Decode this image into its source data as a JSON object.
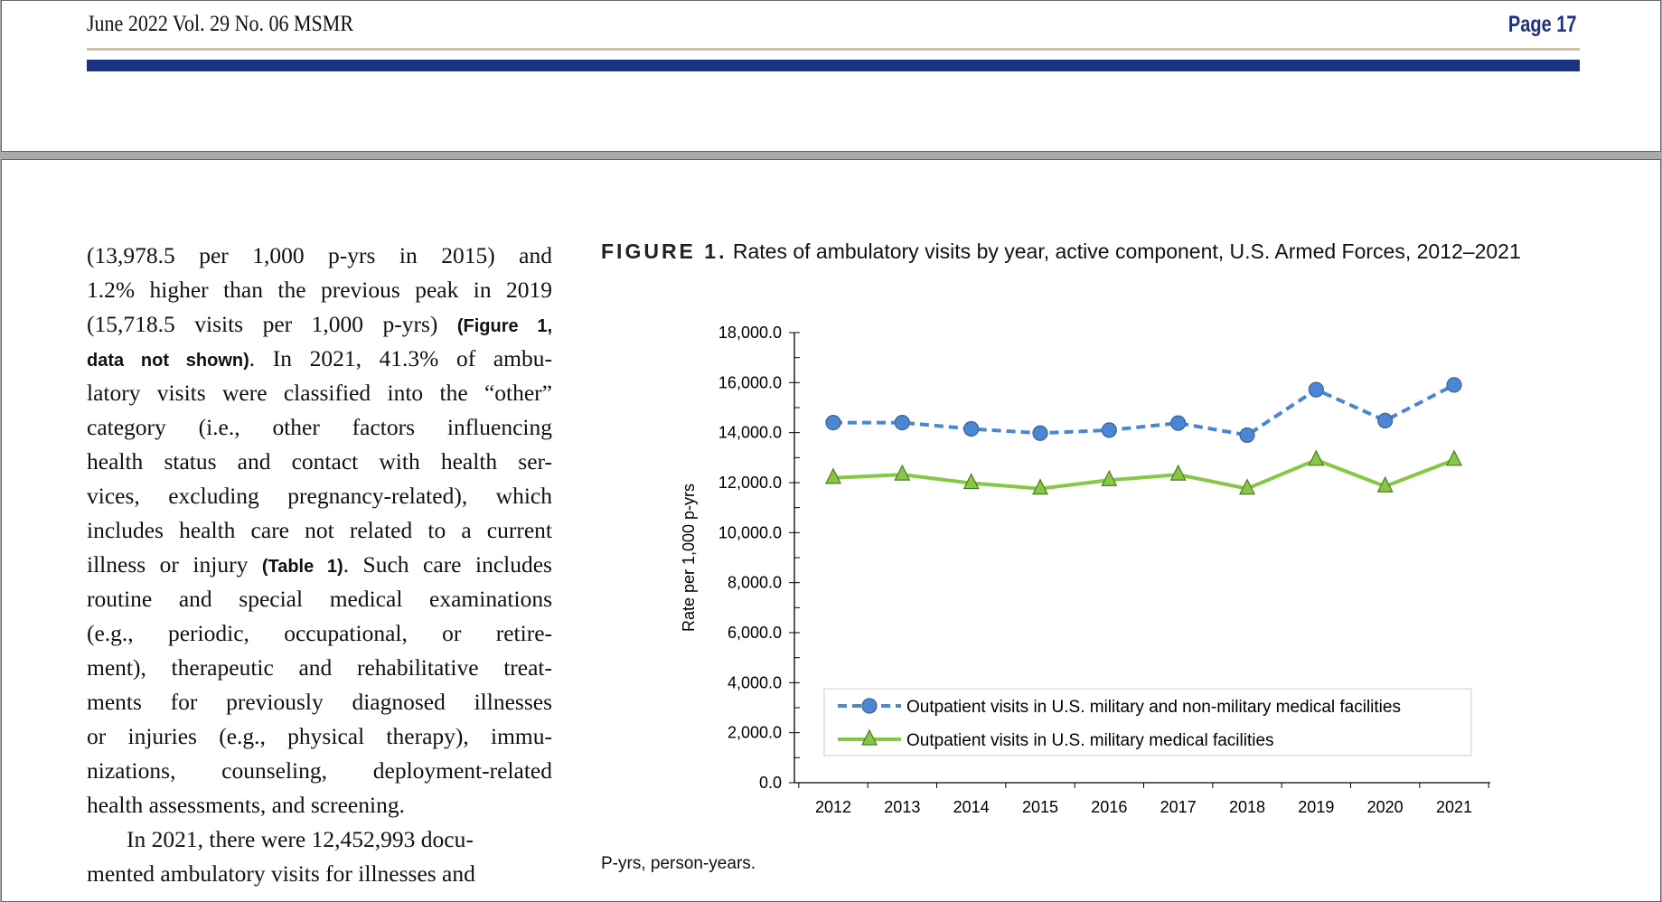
{
  "header": {
    "left": "June 2022   Vol. 29   No. 06   MSMR",
    "right": "Page 17"
  },
  "body_lines": [
    "(13,978.5 per 1,000 p-yrs in 2015) and",
    "1.2% higher than the previous peak in 2019",
    [
      "(15,718.5 visits per 1,000 p-yrs) ",
      "(Figure 1,"
    ],
    [
      "data not shown)",
      ". In 2021, 41.3% of ambu-"
    ],
    "latory visits were classified into the “other”",
    "category (i.e., other factors influencing",
    "health status and contact with health ser-",
    "vices, excluding pregnancy-related), which",
    "includes health care not related to a current",
    [
      "illness or injury ",
      "(Table 1)",
      ". Such care includes"
    ],
    "routine and special medical examinations",
    "(e.g., periodic, occupational, or retire-",
    "ment), therapeutic and rehabilitative treat-",
    "ments for previously diagnosed illnesses",
    "or injuries (e.g., physical therapy), immu-",
    "nizations, counseling, deployment-related",
    "health assessments, and screening.",
    "In 2021, there were 12,452,993 docu-",
    "mented ambulatory visits for illnesses and"
  ],
  "figure": {
    "label": "FIGURE 1.",
    "title": "Rates of ambulatory visits by year, active component, U.S. Armed Forces, 2012–2021",
    "footnote": "P-yrs, person-years."
  },
  "chart_data": {
    "type": "line",
    "title": "Rates of ambulatory visits by year, active component, U.S. Armed Forces, 2012–2021",
    "xlabel": "",
    "ylabel": "Rate per 1,000 p-yrs",
    "ylim": [
      0,
      18000
    ],
    "yticks": [
      "0.0",
      "2,000.0",
      "4,000.0",
      "6,000.0",
      "8,000.0",
      "10,000.0",
      "12,000.0",
      "14,000.0",
      "16,000.0",
      "18,000.0"
    ],
    "categories": [
      "2012",
      "2013",
      "2014",
      "2015",
      "2016",
      "2017",
      "2018",
      "2019",
      "2020",
      "2021"
    ],
    "legend": "bottom-inside",
    "series": [
      {
        "name": "Outpatient visits in U.S. military and non-military medical facilities",
        "color": "#4a86d4",
        "style": "dashed",
        "marker": "circle",
        "values": [
          14400,
          14400,
          14150,
          13978.5,
          14100,
          14380,
          13900,
          15718.5,
          14480,
          15907
        ]
      },
      {
        "name": "Outpatient visits in U.S. military medical facilities",
        "color": "#86c846",
        "style": "solid",
        "marker": "triangle",
        "values": [
          12190,
          12320,
          11980,
          11760,
          12100,
          12320,
          11760,
          12910,
          11850,
          12910
        ]
      }
    ]
  }
}
